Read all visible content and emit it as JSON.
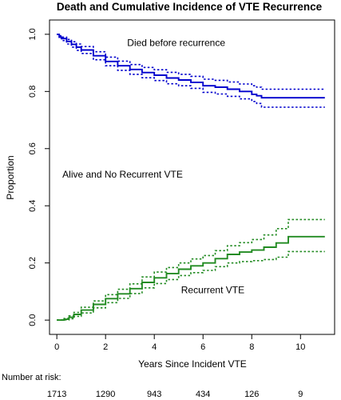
{
  "chart_data": {
    "type": "line",
    "title": "Death and Cumulative Incidence of VTE Recurrence",
    "xlabel": "Years Since Incident VTE",
    "ylabel": "Proportion",
    "xlim": [
      -0.3,
      11.4
    ],
    "ylim": [
      -0.05,
      1.05
    ],
    "x_ticks": [
      "0",
      "2",
      "4",
      "6",
      "8",
      "10"
    ],
    "x_tick_values": [
      0,
      2,
      4,
      6,
      8,
      10
    ],
    "y_ticks": [
      "0.0",
      "0.2",
      "0.4",
      "0.6",
      "0.8",
      "1.0"
    ],
    "y_tick_values": [
      0.0,
      0.2,
      0.4,
      0.6,
      0.8,
      1.0
    ],
    "grid": false,
    "colors": {
      "death": "#0000CD",
      "recurrence": "#228B22"
    },
    "series": [
      {
        "key": "death_est",
        "color": "#0000CD",
        "style": "solid",
        "step": true,
        "points": [
          [
            0,
            1.0
          ],
          [
            0.1,
            0.99
          ],
          [
            0.2,
            0.985
          ],
          [
            0.4,
            0.975
          ],
          [
            0.6,
            0.965
          ],
          [
            0.8,
            0.955
          ],
          [
            1,
            0.945
          ],
          [
            1.5,
            0.925
          ],
          [
            2,
            0.905
          ],
          [
            2.5,
            0.89
          ],
          [
            3,
            0.877
          ],
          [
            3.5,
            0.866
          ],
          [
            4,
            0.857
          ],
          [
            4.5,
            0.847
          ],
          [
            5,
            0.84
          ],
          [
            5.5,
            0.832
          ],
          [
            6,
            0.82
          ],
          [
            6.5,
            0.815
          ],
          [
            7,
            0.808
          ],
          [
            7.5,
            0.8
          ],
          [
            8,
            0.79
          ],
          [
            8.2,
            0.785
          ],
          [
            8.4,
            0.778
          ],
          [
            11,
            0.778
          ]
        ]
      },
      {
        "key": "death_upper",
        "color": "#0000CD",
        "style": "dotted",
        "step": true,
        "points": [
          [
            0,
            1.0
          ],
          [
            0.1,
            0.995
          ],
          [
            0.2,
            0.99
          ],
          [
            0.4,
            0.982
          ],
          [
            0.6,
            0.974
          ],
          [
            0.8,
            0.966
          ],
          [
            1,
            0.957
          ],
          [
            1.5,
            0.939
          ],
          [
            2,
            0.92
          ],
          [
            2.5,
            0.906
          ],
          [
            3,
            0.894
          ],
          [
            3.5,
            0.884
          ],
          [
            4,
            0.876
          ],
          [
            4.5,
            0.867
          ],
          [
            5,
            0.86
          ],
          [
            5.5,
            0.853
          ],
          [
            6,
            0.843
          ],
          [
            6.5,
            0.839
          ],
          [
            7,
            0.833
          ],
          [
            7.5,
            0.826
          ],
          [
            8,
            0.82
          ],
          [
            8.2,
            0.815
          ],
          [
            8.4,
            0.808
          ],
          [
            11,
            0.808
          ]
        ]
      },
      {
        "key": "death_lower",
        "color": "#0000CD",
        "style": "dotted",
        "step": true,
        "points": [
          [
            0,
            1.0
          ],
          [
            0.1,
            0.985
          ],
          [
            0.2,
            0.978
          ],
          [
            0.4,
            0.966
          ],
          [
            0.6,
            0.955
          ],
          [
            0.8,
            0.944
          ],
          [
            1,
            0.933
          ],
          [
            1.5,
            0.911
          ],
          [
            2,
            0.89
          ],
          [
            2.5,
            0.874
          ],
          [
            3,
            0.86
          ],
          [
            3.5,
            0.848
          ],
          [
            4,
            0.838
          ],
          [
            4.5,
            0.827
          ],
          [
            5,
            0.82
          ],
          [
            5.5,
            0.811
          ],
          [
            6,
            0.797
          ],
          [
            6.5,
            0.791
          ],
          [
            7,
            0.783
          ],
          [
            7.5,
            0.774
          ],
          [
            8,
            0.765
          ],
          [
            8.2,
            0.758
          ],
          [
            8.4,
            0.745
          ],
          [
            11,
            0.745
          ]
        ]
      },
      {
        "key": "recur_est",
        "color": "#228B22",
        "style": "solid",
        "step": true,
        "points": [
          [
            0,
            0
          ],
          [
            0.3,
            0.003
          ],
          [
            0.5,
            0.01
          ],
          [
            0.7,
            0.02
          ],
          [
            1,
            0.035
          ],
          [
            1.5,
            0.055
          ],
          [
            2,
            0.075
          ],
          [
            2.5,
            0.092
          ],
          [
            3,
            0.11
          ],
          [
            3.5,
            0.132
          ],
          [
            4,
            0.148
          ],
          [
            4.5,
            0.163
          ],
          [
            5,
            0.178
          ],
          [
            5.5,
            0.19
          ],
          [
            6,
            0.2
          ],
          [
            6.5,
            0.215
          ],
          [
            7,
            0.23
          ],
          [
            7.5,
            0.238
          ],
          [
            8,
            0.245
          ],
          [
            8.5,
            0.255
          ],
          [
            9,
            0.27
          ],
          [
            9.5,
            0.292
          ],
          [
            11,
            0.292
          ]
        ]
      },
      {
        "key": "recur_upper",
        "color": "#228B22",
        "style": "dotted",
        "step": true,
        "points": [
          [
            0,
            0
          ],
          [
            0.3,
            0.006
          ],
          [
            0.5,
            0.015
          ],
          [
            0.7,
            0.027
          ],
          [
            1,
            0.045
          ],
          [
            1.5,
            0.067
          ],
          [
            2,
            0.089
          ],
          [
            2.5,
            0.108
          ],
          [
            3,
            0.127
          ],
          [
            3.5,
            0.151
          ],
          [
            4,
            0.168
          ],
          [
            4.5,
            0.184
          ],
          [
            5,
            0.2
          ],
          [
            5.5,
            0.214
          ],
          [
            6,
            0.226
          ],
          [
            6.5,
            0.243
          ],
          [
            7,
            0.26
          ],
          [
            7.5,
            0.271
          ],
          [
            8,
            0.282
          ],
          [
            8.5,
            0.298
          ],
          [
            9,
            0.32
          ],
          [
            9.5,
            0.352
          ],
          [
            11,
            0.352
          ]
        ]
      },
      {
        "key": "recur_lower",
        "color": "#228B22",
        "style": "dotted",
        "step": true,
        "points": [
          [
            0,
            0
          ],
          [
            0.3,
            0.001
          ],
          [
            0.5,
            0.005
          ],
          [
            0.7,
            0.013
          ],
          [
            1,
            0.025
          ],
          [
            1.5,
            0.043
          ],
          [
            2,
            0.061
          ],
          [
            2.5,
            0.076
          ],
          [
            3,
            0.093
          ],
          [
            3.5,
            0.113
          ],
          [
            4,
            0.128
          ],
          [
            4.5,
            0.142
          ],
          [
            5,
            0.156
          ],
          [
            5.5,
            0.166
          ],
          [
            6,
            0.174
          ],
          [
            6.5,
            0.187
          ],
          [
            7,
            0.2
          ],
          [
            7.5,
            0.205
          ],
          [
            8,
            0.208
          ],
          [
            8.5,
            0.212
          ],
          [
            9,
            0.22
          ],
          [
            9.5,
            0.24
          ],
          [
            11,
            0.24
          ]
        ]
      }
    ],
    "annotations": [
      {
        "text": "Died before recurrence",
        "x": 4.9,
        "y": 0.97
      },
      {
        "text": "Alive and No Recurrent VTE",
        "x": 2.7,
        "y": 0.51
      },
      {
        "text": "Recurrent VTE",
        "x": 6.4,
        "y": 0.105
      }
    ],
    "risk_table": {
      "label": "Number at risk:",
      "x": [
        0,
        2,
        4,
        6,
        8,
        10
      ],
      "values": [
        "1713",
        "1290",
        "943",
        "434",
        "126",
        "9"
      ]
    }
  }
}
